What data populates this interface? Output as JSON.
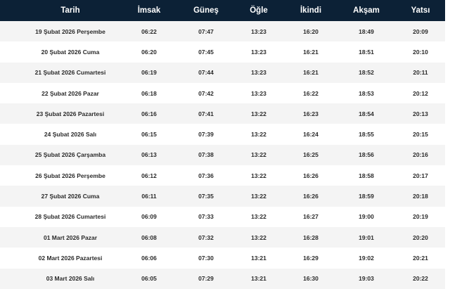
{
  "headers": [
    "Tarih",
    "İmsak",
    "Güneş",
    "Öğle",
    "İkindi",
    "Akşam",
    "Yatsı"
  ],
  "rows": [
    [
      "19 Şubat 2026 Perşembe",
      "06:22",
      "07:47",
      "13:23",
      "16:20",
      "18:49",
      "20:09"
    ],
    [
      "20 Şubat 2026 Cuma",
      "06:20",
      "07:45",
      "13:23",
      "16:21",
      "18:51",
      "20:10"
    ],
    [
      "21 Şubat 2026 Cumartesi",
      "06:19",
      "07:44",
      "13:23",
      "16:21",
      "18:52",
      "20:11"
    ],
    [
      "22 Şubat 2026 Pazar",
      "06:18",
      "07:42",
      "13:23",
      "16:22",
      "18:53",
      "20:12"
    ],
    [
      "23 Şubat 2026 Pazartesi",
      "06:16",
      "07:41",
      "13:22",
      "16:23",
      "18:54",
      "20:13"
    ],
    [
      "24 Şubat 2026 Salı",
      "06:15",
      "07:39",
      "13:22",
      "16:24",
      "18:55",
      "20:15"
    ],
    [
      "25 Şubat 2026 Çarşamba",
      "06:13",
      "07:38",
      "13:22",
      "16:25",
      "18:56",
      "20:16"
    ],
    [
      "26 Şubat 2026 Perşembe",
      "06:12",
      "07:36",
      "13:22",
      "16:26",
      "18:58",
      "20:17"
    ],
    [
      "27 Şubat 2026 Cuma",
      "06:11",
      "07:35",
      "13:22",
      "16:26",
      "18:59",
      "20:18"
    ],
    [
      "28 Şubat 2026 Cumartesi",
      "06:09",
      "07:33",
      "13:22",
      "16:27",
      "19:00",
      "20:19"
    ],
    [
      "01 Mart 2026 Pazar",
      "06:08",
      "07:32",
      "13:22",
      "16:28",
      "19:01",
      "20:20"
    ],
    [
      "02 Mart 2026 Pazartesi",
      "06:06",
      "07:30",
      "13:21",
      "16:29",
      "19:02",
      "20:21"
    ],
    [
      "03 Mart 2026 Salı",
      "06:05",
      "07:29",
      "13:21",
      "16:30",
      "19:03",
      "20:22"
    ]
  ],
  "colors": {
    "header_bg": "#0c2136",
    "stripe": "#f4f4f4"
  }
}
